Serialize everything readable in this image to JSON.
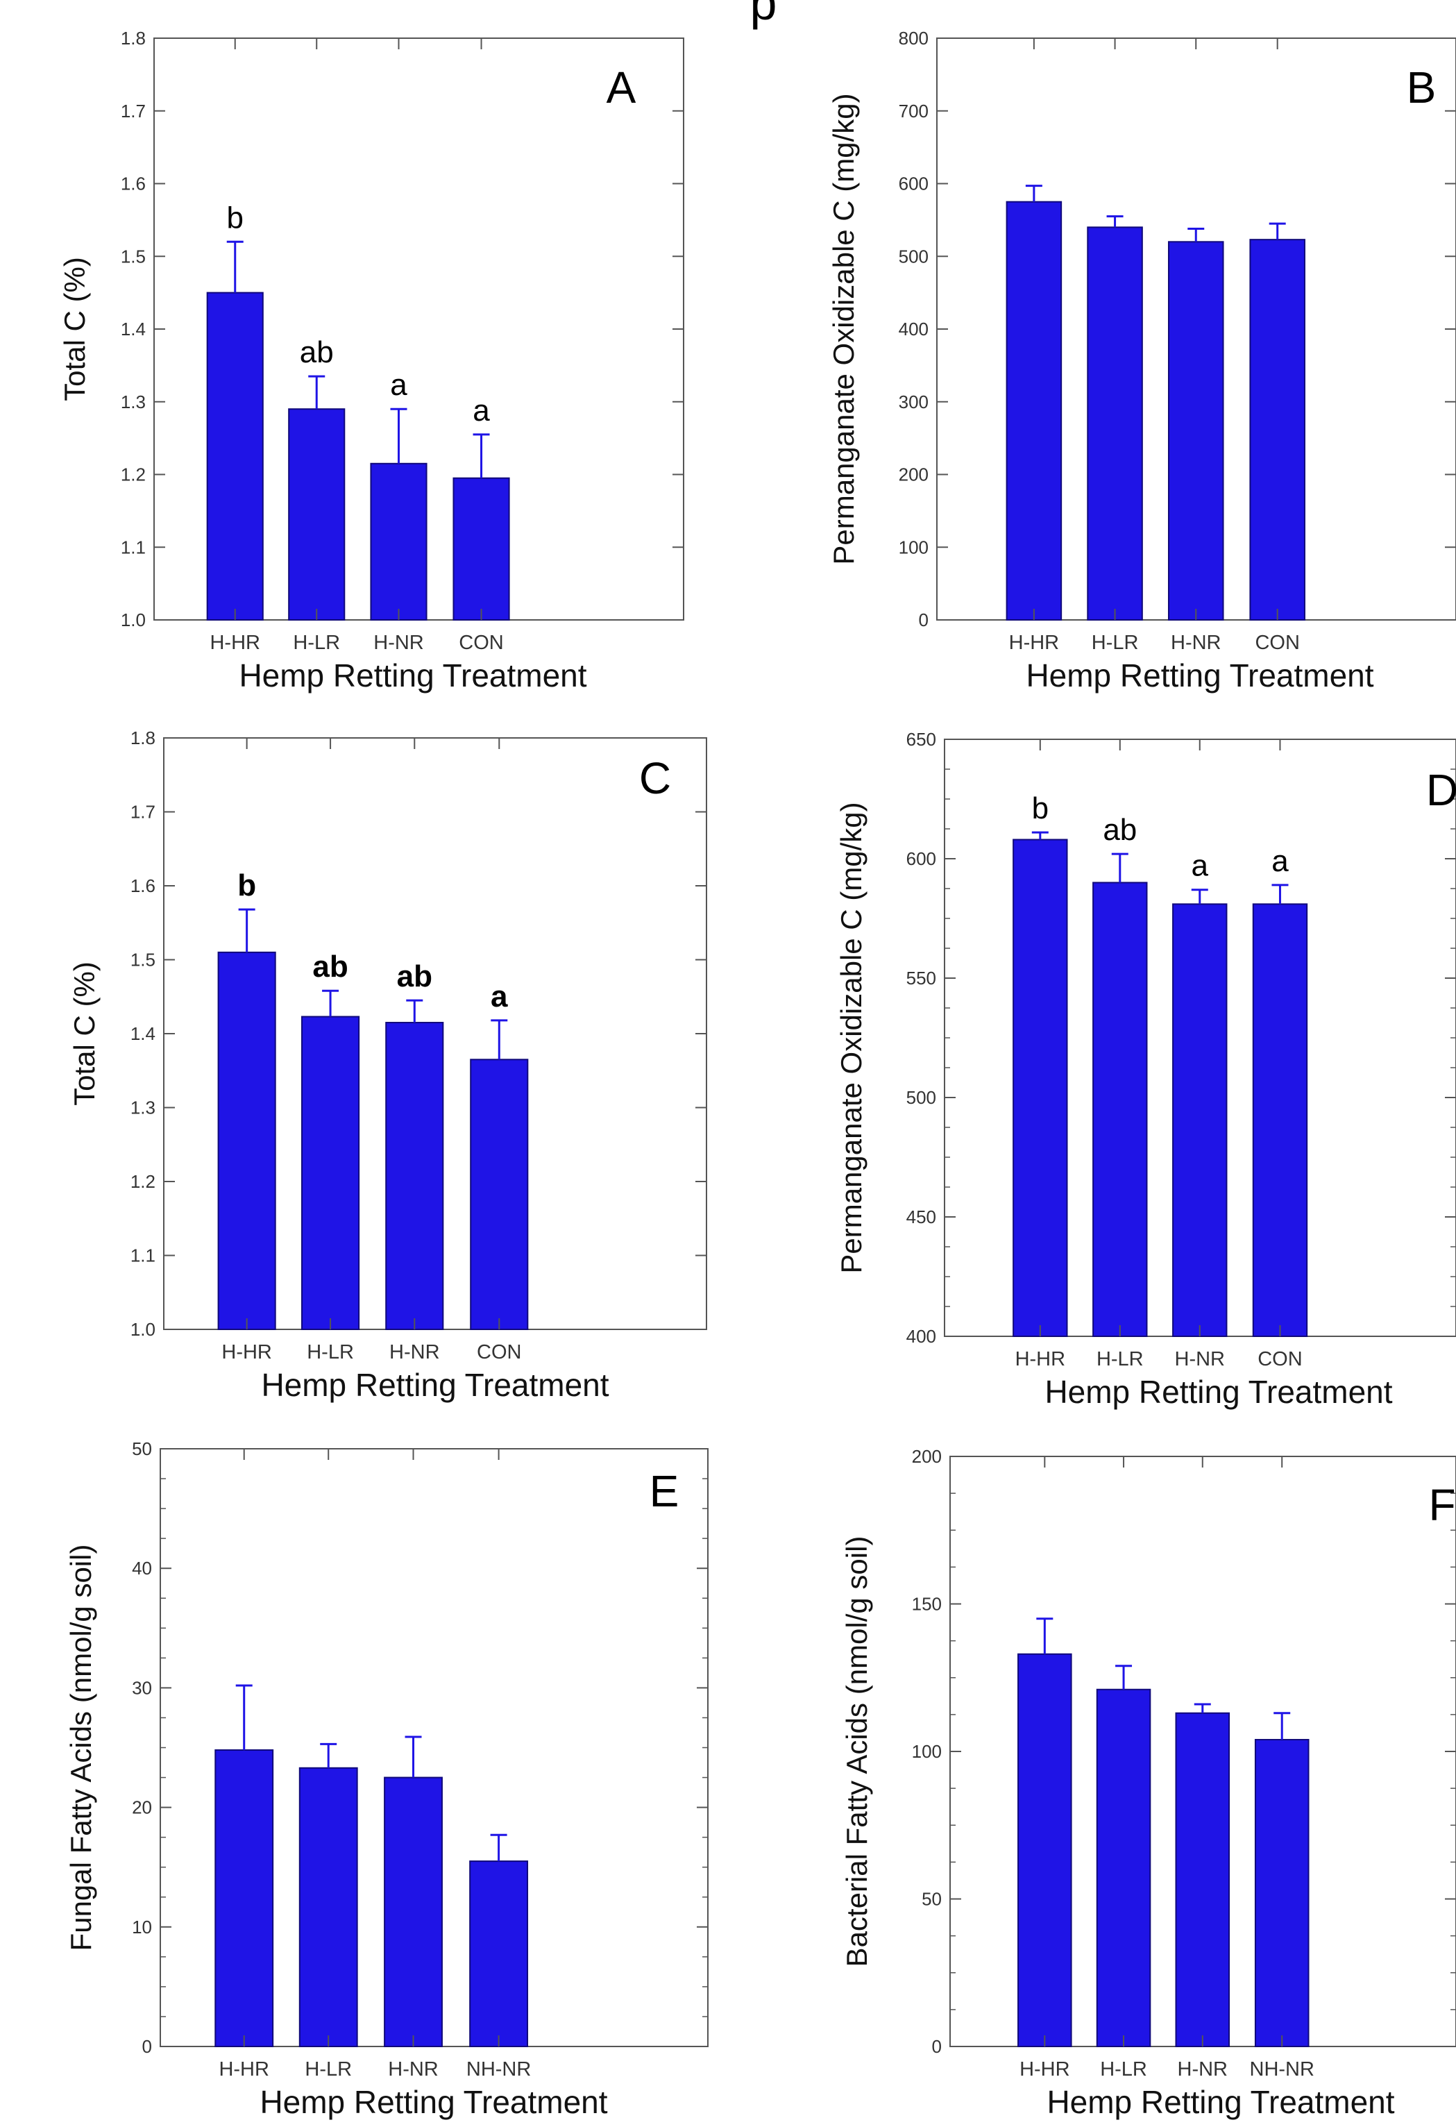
{
  "header": {
    "fragment": "p"
  },
  "colors": {
    "bar": "#1f14e6",
    "axis": "#555555",
    "text": "#111111"
  },
  "chart_data": [
    {
      "panel": "A",
      "type": "bar",
      "categories": [
        "H-HR",
        "H-LR",
        "H-NR",
        "CON"
      ],
      "values": [
        1.45,
        1.29,
        1.215,
        1.195
      ],
      "errors": [
        0.07,
        0.045,
        0.075,
        0.06
      ],
      "significance": [
        "b",
        "ab",
        "a",
        "a"
      ],
      "xlabel": "Hemp Retting Treatment",
      "ylabel": "Total C (%)",
      "ylim": [
        1.0,
        1.8
      ],
      "yticks": [
        "1.0",
        "1.1",
        "1.2",
        "1.3",
        "1.4",
        "1.5",
        "1.6",
        "1.7",
        "1.8"
      ],
      "grid": false
    },
    {
      "panel": "B",
      "type": "bar",
      "categories": [
        "H-HR",
        "H-LR",
        "H-NR",
        "CON"
      ],
      "values": [
        575,
        540,
        520,
        523
      ],
      "errors": [
        22,
        15,
        18,
        22
      ],
      "significance": [],
      "xlabel": "Hemp Retting Treatment",
      "ylabel": "Permanganate Oxidizable C (mg/kg)",
      "ylim": [
        0,
        800
      ],
      "yticks": [
        "0",
        "100",
        "200",
        "300",
        "400",
        "500",
        "600",
        "700",
        "800"
      ],
      "grid": false
    },
    {
      "panel": "C",
      "type": "bar",
      "categories": [
        "H-HR",
        "H-LR",
        "H-NR",
        "CON"
      ],
      "values": [
        1.51,
        1.423,
        1.415,
        1.365
      ],
      "errors": [
        0.058,
        0.035,
        0.03,
        0.053
      ],
      "significance": [
        "b",
        "ab",
        "ab",
        "a"
      ],
      "xlabel": "Hemp Retting Treatment",
      "ylabel": "Total C (%)",
      "ylim": [
        1.0,
        1.8
      ],
      "yticks": [
        "1.0",
        "1.1",
        "1.2",
        "1.3",
        "1.4",
        "1.5",
        "1.6",
        "1.7",
        "1.8"
      ],
      "grid": false
    },
    {
      "panel": "D",
      "type": "bar",
      "categories": [
        "H-HR",
        "H-LR",
        "H-NR",
        "CON"
      ],
      "values": [
        608,
        590,
        581,
        581
      ],
      "errors": [
        3,
        12,
        6,
        8
      ],
      "significance": [
        "b",
        "ab",
        "a",
        "a"
      ],
      "xlabel": "Hemp Retting Treatment",
      "ylabel": "Permanganate Oxidizable C (mg/kg)",
      "ylim": [
        400,
        650
      ],
      "yticks": [
        "400",
        "450",
        "500",
        "550",
        "600",
        "650"
      ],
      "grid": false
    },
    {
      "panel": "E",
      "type": "bar",
      "categories": [
        "H-HR",
        "H-LR",
        "H-NR",
        "NH-NR"
      ],
      "values": [
        24.8,
        23.3,
        22.5,
        15.5
      ],
      "errors": [
        5.4,
        2.0,
        3.4,
        2.2
      ],
      "significance": [],
      "xlabel": "Hemp Retting Treatment",
      "ylabel": "Fungal Fatty Acids (nmol/g soil)",
      "ylim": [
        0,
        50
      ],
      "yticks": [
        "0",
        "10",
        "20",
        "30",
        "40",
        "50"
      ],
      "grid": false
    },
    {
      "panel": "F",
      "type": "bar",
      "categories": [
        "H-HR",
        "H-LR",
        "H-NR",
        "NH-NR"
      ],
      "values": [
        133,
        121,
        113,
        104
      ],
      "errors": [
        12,
        8,
        3,
        9
      ],
      "significance": [],
      "xlabel": "Hemp Retting Treatment",
      "ylabel": "Bacterial Fatty Acids (nmol/g soil)",
      "ylim": [
        0,
        200
      ],
      "yticks": [
        "0",
        "50",
        "100",
        "150",
        "200"
      ],
      "grid": false
    }
  ]
}
